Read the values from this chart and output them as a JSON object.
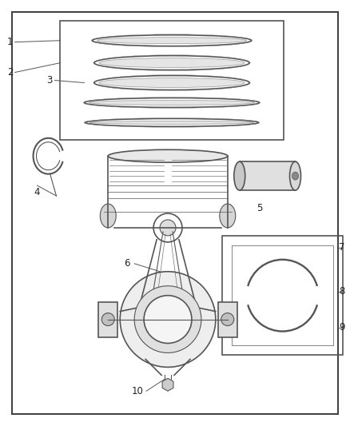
{
  "bg_color": "#ffffff",
  "border_color": "#444444",
  "line_color": "#555555",
  "label_color": "#222222",
  "fig_w": 4.38,
  "fig_h": 5.33,
  "dpi": 100
}
